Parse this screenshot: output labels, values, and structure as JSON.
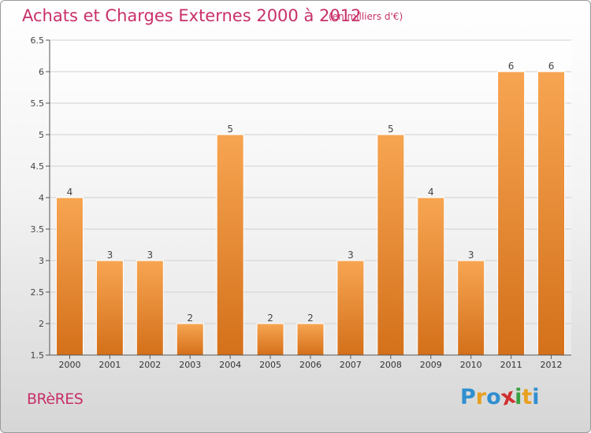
{
  "chart_title": "Achats et Charges Externes 2000 à 2012",
  "chart_unit": "(en milliers d'€)",
  "commune": "BRèRES",
  "logo": {
    "letters": [
      "P",
      "r",
      "o",
      "x",
      "i",
      "t",
      "i"
    ],
    "colors": [
      "#2f8fd0",
      "#e8a020",
      "#2f8fd0",
      "#d03030",
      "#3aa040",
      "#e8a020",
      "#2f8fd0"
    ]
  },
  "chart_data": {
    "type": "bar",
    "categories": [
      "2000",
      "2001",
      "2002",
      "2003",
      "2004",
      "2005",
      "2006",
      "2007",
      "2008",
      "2009",
      "2010",
      "2011",
      "2012"
    ],
    "values": [
      4,
      3,
      3,
      2,
      5,
      2,
      2,
      3,
      5,
      4,
      3,
      6,
      6
    ],
    "data_labels": [
      "4",
      "3",
      "3",
      "2",
      "5",
      "2",
      "2",
      "3",
      "5",
      "4",
      "3",
      "6",
      "6"
    ],
    "yticks": [
      "1.5",
      "2",
      "2.5",
      "3",
      "3.5",
      "4",
      "4.5",
      "5",
      "5.5",
      "6",
      "6.5"
    ],
    "ylim": [
      1.5,
      6.5
    ],
    "grid": true,
    "bar_color": "#f0902a"
  }
}
